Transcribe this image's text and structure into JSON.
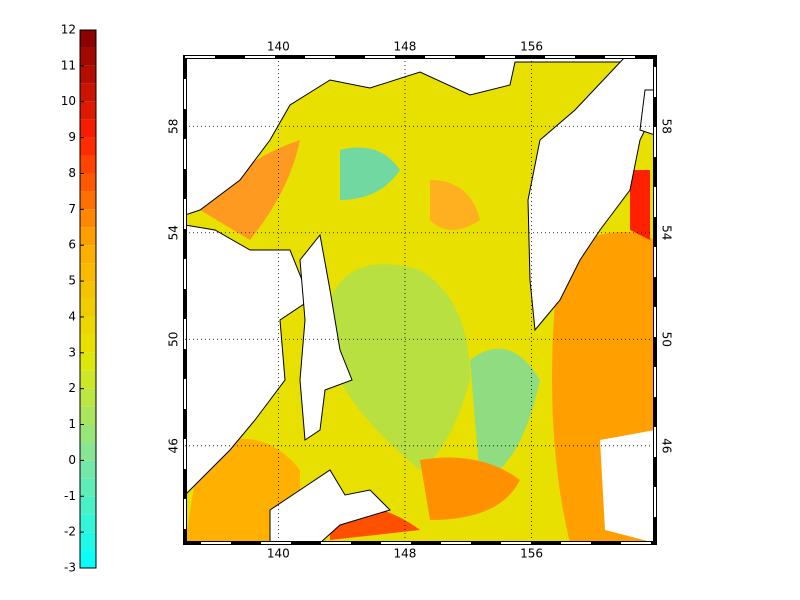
{
  "colorbar": {
    "lim": [
      -3,
      12
    ],
    "ticks": [
      12,
      11,
      10,
      9,
      8,
      7,
      6,
      5,
      4,
      3,
      2,
      1,
      0,
      -1,
      -2,
      -3
    ],
    "step": 0.5,
    "colors": [
      "#00ffff",
      "#7fe6a0",
      "#e6e600",
      "#ffaa00",
      "#ff2000",
      "#800000"
    ]
  },
  "map": {
    "xlim": [
      134.1,
      163.8
    ],
    "ylim": [
      42.35,
      60.6
    ],
    "xticks": [
      140,
      148,
      156
    ],
    "yticks": [
      46,
      50,
      54,
      58
    ],
    "grid": true
  }
}
